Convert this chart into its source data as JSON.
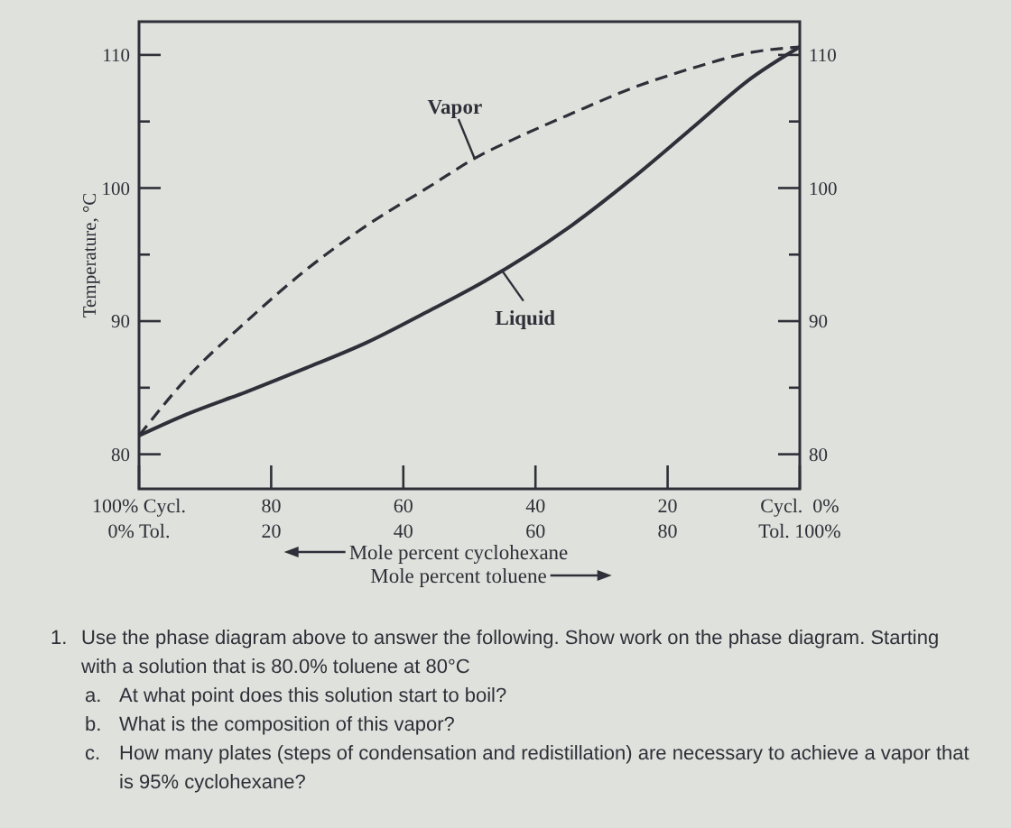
{
  "chart_data": {
    "type": "line",
    "xlabel": "Mole percent cyclohexane",
    "x2label": "Mole percent toluene",
    "ylabel": "Temperature, °C",
    "xlim": [
      100,
      0
    ],
    "xticks": [
      {
        "value": 100,
        "label": "100% Cycl."
      },
      80,
      60,
      40,
      20,
      {
        "value": 0,
        "label": "Cycl.  0%"
      }
    ],
    "x2lim": [
      0,
      100
    ],
    "x2ticks": [
      {
        "value": 0,
        "label": "0% Tol."
      },
      20,
      40,
      60,
      80,
      {
        "value": 100,
        "label": "Tol. 100%"
      }
    ],
    "ylim": [
      77.4,
      112.5
    ],
    "yticks": [
      80,
      {
        "value": 85,
        "label": null
      },
      90,
      {
        "value": 95,
        "label": null
      },
      100,
      {
        "value": 105,
        "label": null
      },
      110
    ],
    "y2lim": [
      77.4,
      112.5
    ],
    "y2ticks": [
      80,
      {
        "value": 85,
        "label": null
      },
      90,
      {
        "value": 95,
        "label": null
      },
      100,
      {
        "value": 105,
        "label": null
      },
      110
    ],
    "series": [
      {
        "name": "Vapor",
        "color": "#2e2f38",
        "line_style": "dashed",
        "x": [
          100,
          92.8,
          83.7,
          74.6,
          65.5,
          56.4,
          48.2,
          43.6,
          34.5,
          25.4,
          16.3,
          7.2,
          0
        ],
        "values": [
          81.4,
          85.7,
          90.0,
          93.9,
          97.2,
          100.0,
          102.5,
          103.6,
          105.6,
          107.5,
          109.0,
          110.2,
          110.6
        ]
      },
      {
        "name": "Liquid",
        "color": "#2e2f38",
        "line_style": "solid",
        "x": [
          100,
          92.8,
          83.7,
          74.6,
          65.5,
          56.4,
          47.7,
          34.5,
          25.4,
          16.3,
          7.2,
          0
        ],
        "values": [
          81.4,
          83.0,
          84.7,
          86.5,
          88.4,
          90.7,
          93.0,
          97.2,
          100.7,
          104.5,
          108.3,
          110.6
        ]
      }
    ],
    "annotations": [
      "1. Use the phase diagram above to answer the following. Show work on the phase diagram. Starting with a solution that is 80.0% toluene at 80°C",
      "a. At what point does this solution start to boil?",
      "b. What is the composition of this vapor?",
      "c. How many plates (steps of condensation and redistillation) are necessary to achieve a vapor that is 95% cyclohexane?"
    ]
  }
}
